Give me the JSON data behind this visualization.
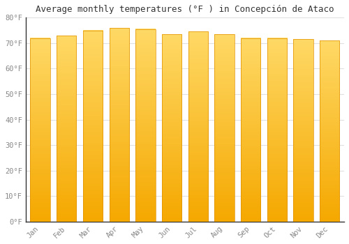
{
  "title": "Average monthly temperatures (°F ) in Concepción de Ataco",
  "months": [
    "Jan",
    "Feb",
    "Mar",
    "Apr",
    "May",
    "Jun",
    "Jul",
    "Aug",
    "Sep",
    "Oct",
    "Nov",
    "Dec"
  ],
  "values": [
    72,
    73,
    75,
    76,
    75.5,
    73.5,
    74.5,
    73.5,
    72,
    72,
    71.5,
    71
  ],
  "ylim": [
    0,
    80
  ],
  "yticks": [
    0,
    10,
    20,
    30,
    40,
    50,
    60,
    70,
    80
  ],
  "ytick_labels": [
    "0°F",
    "10°F",
    "20°F",
    "30°F",
    "40°F",
    "50°F",
    "60°F",
    "70°F",
    "80°F"
  ],
  "bar_color_bottom": "#F5A800",
  "bar_color_top": "#FFD966",
  "bar_edge_color": "#E09000",
  "background_color": "#FFFFFF",
  "grid_color": "#E0E0E0",
  "title_fontsize": 9,
  "tick_fontsize": 7.5,
  "bar_width": 0.75,
  "figsize": [
    5.0,
    3.5
  ],
  "dpi": 100
}
